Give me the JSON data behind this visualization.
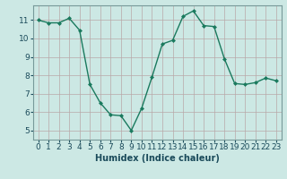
{
  "x": [
    0,
    1,
    2,
    3,
    4,
    5,
    6,
    7,
    8,
    9,
    10,
    11,
    12,
    13,
    14,
    15,
    16,
    17,
    18,
    19,
    20,
    21,
    22,
    23
  ],
  "y": [
    11.0,
    10.85,
    10.85,
    11.1,
    10.45,
    7.5,
    6.5,
    5.85,
    5.8,
    5.0,
    6.2,
    7.9,
    9.7,
    9.9,
    11.2,
    11.5,
    10.7,
    10.65,
    8.9,
    7.55,
    7.5,
    7.6,
    7.85,
    7.7
  ],
  "line_color": "#1a7a5e",
  "marker_color": "#1a7a5e",
  "bg_color": "#cce8e4",
  "grid_major_color": "#b8a8a8",
  "grid_minor_color": "#d8c8c8",
  "xlabel": "Humidex (Indice chaleur)",
  "ylabel": "",
  "title": "",
  "ylim": [
    4.5,
    11.8
  ],
  "xlim": [
    -0.5,
    23.5
  ],
  "yticks": [
    5,
    6,
    7,
    8,
    9,
    10,
    11
  ],
  "xticks": [
    0,
    1,
    2,
    3,
    4,
    5,
    6,
    7,
    8,
    9,
    10,
    11,
    12,
    13,
    14,
    15,
    16,
    17,
    18,
    19,
    20,
    21,
    22,
    23
  ],
  "tick_color": "#1a4a5a",
  "label_fontsize": 6.5,
  "xlabel_fontsize": 7.0
}
